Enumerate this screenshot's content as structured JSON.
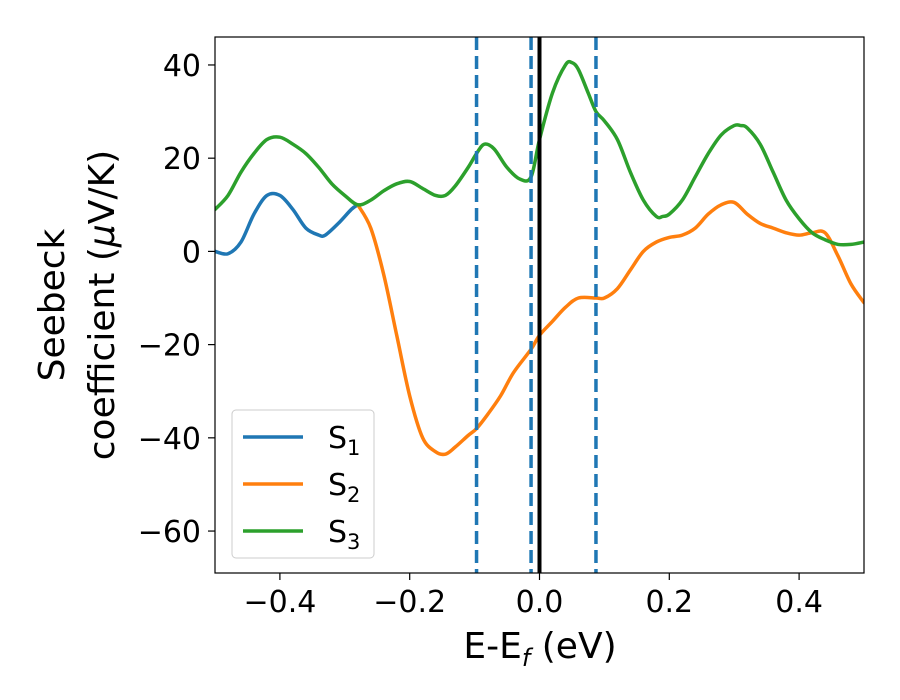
{
  "chart_data": {
    "type": "line",
    "title": "",
    "xlabel": {
      "main": "E-E",
      "sub": "f",
      "suffix": " (eV)"
    },
    "ylabel": {
      "line1": "Seebeck",
      "line2_prefix": "coefficient  (",
      "mu": "μ",
      "line2_suffix": "V/K)"
    },
    "xlim": [
      -0.5,
      0.5
    ],
    "ylim": [
      -69,
      46
    ],
    "xticks": [
      -0.4,
      -0.2,
      0.0,
      0.2,
      0.4
    ],
    "xtick_labels": [
      "−0.4",
      "−0.2",
      "0.0",
      "0.2",
      "0.4"
    ],
    "yticks": [
      40,
      20,
      0,
      -20,
      -40,
      -60
    ],
    "ytick_labels": [
      "40",
      "20",
      "0",
      "−20",
      "−40",
      "−60"
    ],
    "grid": false,
    "legend_position": "lower-left",
    "vlines": [
      {
        "x": -0.097,
        "style": "dashed",
        "color": "#1f77b4"
      },
      {
        "x": -0.013,
        "style": "dashed",
        "color": "#1f77b4"
      },
      {
        "x": 0.0,
        "style": "solid",
        "color": "#000000"
      },
      {
        "x": 0.087,
        "style": "dashed",
        "color": "#1f77b4"
      }
    ],
    "series": [
      {
        "name": "S",
        "sub": "1",
        "color": "#1f77b4",
        "x": [
          -0.5,
          -0.48,
          -0.46,
          -0.44,
          -0.42,
          -0.4,
          -0.38,
          -0.36,
          -0.34,
          -0.33,
          -0.31,
          -0.29,
          -0.28
        ],
        "y": [
          0,
          -0.5,
          2,
          8,
          12,
          12,
          9,
          5,
          3.5,
          3.5,
          6,
          9,
          10
        ]
      },
      {
        "name": "S",
        "sub": "2",
        "color": "#ff7f0e",
        "x": [
          -0.28,
          -0.26,
          -0.24,
          -0.22,
          -0.2,
          -0.18,
          -0.16,
          -0.145,
          -0.13,
          -0.11,
          -0.097,
          -0.08,
          -0.06,
          -0.04,
          -0.013,
          0.0,
          0.02,
          0.04,
          0.06,
          0.087,
          0.1,
          0.12,
          0.14,
          0.16,
          0.18,
          0.2,
          0.22,
          0.24,
          0.26,
          0.28,
          0.3,
          0.32,
          0.34,
          0.36,
          0.38,
          0.4,
          0.42,
          0.44,
          0.46,
          0.48,
          0.5
        ],
        "y": [
          10,
          5,
          -5,
          -18,
          -31,
          -40,
          -43,
          -43.5,
          -42,
          -39.5,
          -38,
          -35,
          -31,
          -26,
          -21,
          -18,
          -15,
          -12,
          -10,
          -10,
          -10,
          -8,
          -4,
          0,
          2,
          3,
          3.5,
          5,
          8,
          10,
          10.5,
          8,
          6,
          5,
          4,
          3.5,
          4,
          4,
          -1,
          -7,
          -11
        ]
      },
      {
        "name": "S",
        "sub": "3",
        "color": "#2ca02c",
        "x": [
          -0.5,
          -0.48,
          -0.46,
          -0.44,
          -0.42,
          -0.4,
          -0.38,
          -0.36,
          -0.34,
          -0.32,
          -0.3,
          -0.28,
          -0.26,
          -0.24,
          -0.22,
          -0.2,
          -0.18,
          -0.16,
          -0.145,
          -0.13,
          -0.11,
          -0.097,
          -0.085,
          -0.07,
          -0.05,
          -0.03,
          -0.013,
          0.0,
          0.02,
          0.04,
          0.05,
          0.06,
          0.075,
          0.087,
          0.1,
          0.12,
          0.14,
          0.16,
          0.18,
          0.19,
          0.2,
          0.22,
          0.24,
          0.26,
          0.28,
          0.3,
          0.31,
          0.32,
          0.34,
          0.36,
          0.38,
          0.4,
          0.42,
          0.44,
          0.46,
          0.48,
          0.5
        ],
        "y": [
          9,
          12,
          17,
          21,
          24,
          24.5,
          23,
          21,
          18,
          14.5,
          12,
          10,
          11,
          13,
          14.5,
          15,
          13.5,
          12,
          12,
          14,
          18,
          21,
          23,
          22,
          18,
          15.5,
          16,
          24,
          34,
          40,
          40.5,
          39,
          34,
          30,
          28,
          24,
          17,
          11,
          7.5,
          7.5,
          8,
          11,
          16,
          21,
          25,
          27,
          27,
          26.5,
          23,
          17,
          11,
          7,
          4,
          2.5,
          1.5,
          1.5,
          2
        ]
      }
    ]
  }
}
